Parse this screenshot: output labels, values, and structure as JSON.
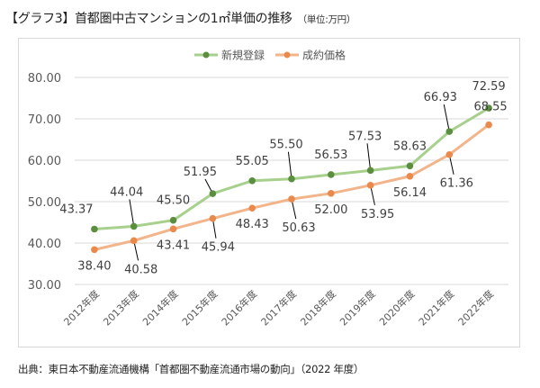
{
  "title": "【グラフ3】首都圏中古マンションの1㎡単価の推移",
  "unit": "（単位:万円）",
  "source": "出典：東日本不動産流通機構「首都圏不動産流通市場の動向」（2022 年度）",
  "chart_data": {
    "type": "line",
    "title": "【グラフ3】首都圏中古マンションの1㎡単価の推移",
    "xlabel": "",
    "ylabel": "",
    "ylim": [
      30,
      80
    ],
    "yticks": [
      "30.00",
      "40.00",
      "50.00",
      "60.00",
      "70.00",
      "80.00"
    ],
    "grid": true,
    "legend_position": "top-center",
    "categories": [
      "2012年度",
      "2013年度",
      "2014年度",
      "2015年度",
      "2016年度",
      "2017年度",
      "2018年度",
      "2019年度",
      "2020年度",
      "2021年度",
      "2022年度"
    ],
    "series": [
      {
        "name": "新規登録",
        "color": "#a6d08c",
        "marker_color": "#5b8f3f",
        "values": [
          43.37,
          44.04,
          45.5,
          51.95,
          55.05,
          55.5,
          56.53,
          57.53,
          58.63,
          66.93,
          72.59
        ],
        "labels": [
          "43.37",
          "44.04",
          "45.50",
          "51.95",
          "55.05",
          "55.50",
          "56.53",
          "57.53",
          "58.63",
          "66.93",
          "72.59"
        ]
      },
      {
        "name": "成約価格",
        "color": "#f2b48a",
        "marker_color": "#e98a4c",
        "values": [
          38.4,
          40.58,
          43.41,
          45.94,
          48.43,
          50.63,
          52.0,
          53.95,
          56.14,
          61.36,
          68.55
        ],
        "labels": [
          "38.40",
          "40.58",
          "43.41",
          "45.94",
          "48.43",
          "50.63",
          "52.00",
          "53.95",
          "56.14",
          "61.36",
          "68.55"
        ]
      }
    ]
  }
}
